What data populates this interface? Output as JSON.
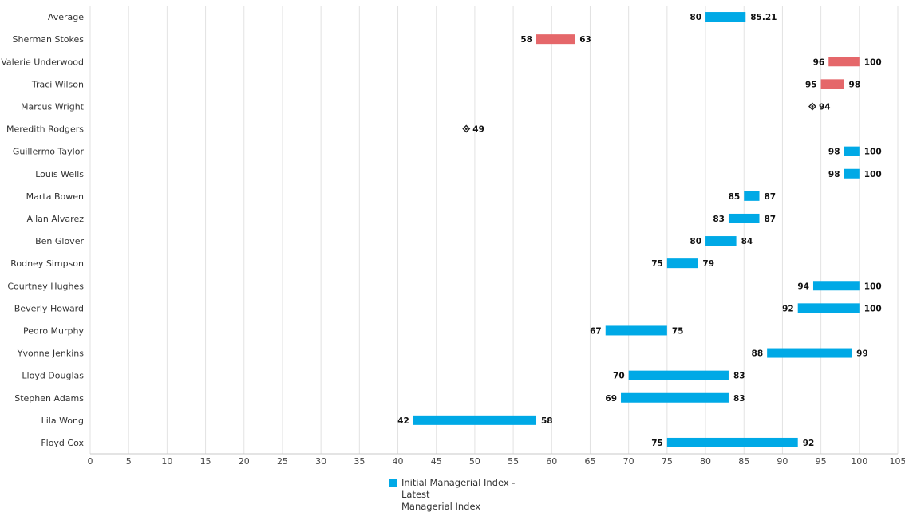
{
  "chart_data": {
    "type": "bar",
    "orientation": "horizontal-range",
    "categories": [
      "Average",
      "Sherman Stokes",
      "Valerie Underwood",
      "Traci Wilson",
      "Marcus Wright",
      "Meredith Rodgers",
      "Guillermo Taylor",
      "Louis Wells",
      "Marta Bowen",
      "Allan Alvarez",
      "Ben Glover",
      "Rodney Simpson",
      "Courtney Hughes",
      "Beverly Howard",
      "Pedro Murphy",
      "Yvonne Jenkins",
      "Lloyd Douglas",
      "Stephen Adams",
      "Lila Wong",
      "Floyd Cox"
    ],
    "series": [
      {
        "name": "Initial Managerial Index - Latest Managerial Index",
        "ranges": [
          {
            "category": "Average",
            "start": 80,
            "end": 85.21,
            "start_label": "80",
            "end_label": "85.21",
            "color": "#00a9e6"
          },
          {
            "category": "Sherman Stokes",
            "start": 58,
            "end": 63,
            "start_label": "58",
            "end_label": "63",
            "color": "#e5676a"
          },
          {
            "category": "Valerie Underwood",
            "start": 96,
            "end": 100,
            "start_label": "96",
            "end_label": "100",
            "color": "#e5676a"
          },
          {
            "category": "Traci Wilson",
            "start": 95,
            "end": 98,
            "start_label": "95",
            "end_label": "98",
            "color": "#e5676a"
          },
          {
            "category": "Marcus Wright",
            "start": 94,
            "end": 94,
            "start_label": "",
            "end_label": "94",
            "color": "#222222"
          },
          {
            "category": "Meredith Rodgers",
            "start": 49,
            "end": 49,
            "start_label": "",
            "end_label": "49",
            "color": "#222222"
          },
          {
            "category": "Guillermo Taylor",
            "start": 98,
            "end": 100,
            "start_label": "98",
            "end_label": "100",
            "color": "#00a9e6"
          },
          {
            "category": "Louis Wells",
            "start": 98,
            "end": 100,
            "start_label": "98",
            "end_label": "100",
            "color": "#00a9e6"
          },
          {
            "category": "Marta Bowen",
            "start": 85,
            "end": 87,
            "start_label": "85",
            "end_label": "87",
            "color": "#00a9e6"
          },
          {
            "category": "Allan Alvarez",
            "start": 83,
            "end": 87,
            "start_label": "83",
            "end_label": "87",
            "color": "#00a9e6"
          },
          {
            "category": "Ben Glover",
            "start": 80,
            "end": 84,
            "start_label": "80",
            "end_label": "84",
            "color": "#00a9e6"
          },
          {
            "category": "Rodney Simpson",
            "start": 75,
            "end": 79,
            "start_label": "75",
            "end_label": "79",
            "color": "#00a9e6"
          },
          {
            "category": "Courtney Hughes",
            "start": 94,
            "end": 100,
            "start_label": "94",
            "end_label": "100",
            "color": "#00a9e6"
          },
          {
            "category": "Beverly Howard",
            "start": 92,
            "end": 100,
            "start_label": "92",
            "end_label": "100",
            "color": "#00a9e6"
          },
          {
            "category": "Pedro Murphy",
            "start": 67,
            "end": 75,
            "start_label": "67",
            "end_label": "75",
            "color": "#00a9e6"
          },
          {
            "category": "Yvonne Jenkins",
            "start": 88,
            "end": 99,
            "start_label": "88",
            "end_label": "99",
            "color": "#00a9e6"
          },
          {
            "category": "Lloyd Douglas",
            "start": 70,
            "end": 83,
            "start_label": "70",
            "end_label": "83",
            "color": "#00a9e6"
          },
          {
            "category": "Stephen Adams",
            "start": 69,
            "end": 83,
            "start_label": "69",
            "end_label": "83",
            "color": "#00a9e6"
          },
          {
            "category": "Lila Wong",
            "start": 42,
            "end": 58,
            "start_label": "42",
            "end_label": "58",
            "color": "#00a9e6"
          },
          {
            "category": "Floyd Cox",
            "start": 75,
            "end": 92,
            "start_label": "75",
            "end_label": "92",
            "color": "#00a9e6"
          }
        ]
      }
    ],
    "xlim": [
      0,
      105
    ],
    "xticks": [
      0,
      5,
      10,
      15,
      20,
      25,
      30,
      35,
      40,
      45,
      50,
      55,
      60,
      65,
      70,
      75,
      80,
      85,
      90,
      95,
      100,
      105
    ],
    "grid": true,
    "legend": {
      "placement": "bottom-center",
      "label": "Initial Managerial Index - Latest Managerial Index",
      "lines": [
        "Initial Managerial Index -",
        "Latest",
        "Managerial Index"
      ],
      "color": "#00a9e6"
    },
    "colors": {
      "increase": "#00a9e6",
      "decrease": "#e5676a",
      "no_change": "#222222"
    }
  }
}
